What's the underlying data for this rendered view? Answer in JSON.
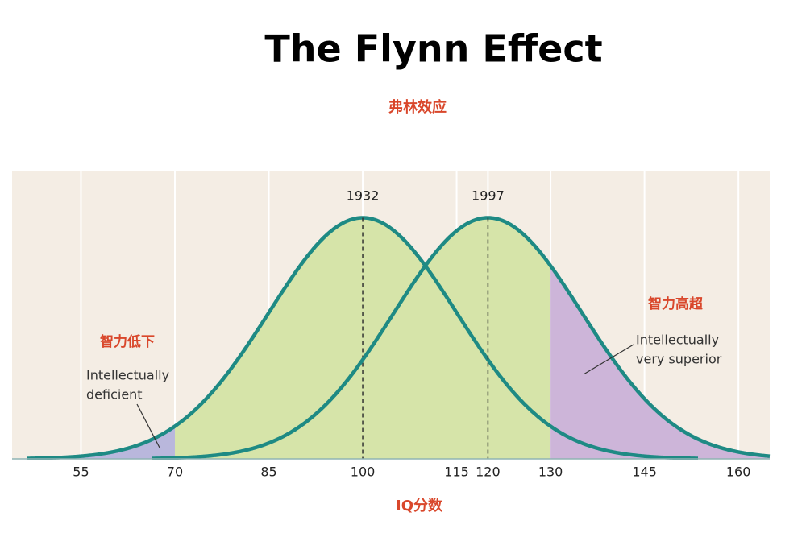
{
  "chart_data": {
    "type": "normal_curves",
    "title": "The Flynn Effect",
    "subtitle": "弗林效应",
    "x_label": "IQ分数",
    "xlim": [
      44,
      165
    ],
    "ylim": [
      0,
      0.0317
    ],
    "xticks": [
      55,
      70,
      85,
      100,
      115,
      120,
      130,
      145,
      160
    ],
    "grid": true,
    "curve_color": "#1e8a84",
    "series": [
      {
        "name": "1932",
        "mean": 100,
        "sd": 15
      },
      {
        "name": "1997",
        "mean": 120,
        "sd": 15
      }
    ],
    "low_cutoff": 70,
    "high_cutoff": 130,
    "low_color": "#b9b7dc",
    "mid_color": "#d6e4a9",
    "high_color": "#cdb5d9",
    "annotations": {
      "low_title": "智力低下",
      "low_text": [
        "Intellectually",
        "deficient"
      ],
      "high_title": "智力高超",
      "high_text": [
        "Intellectually",
        "very superior"
      ]
    }
  }
}
